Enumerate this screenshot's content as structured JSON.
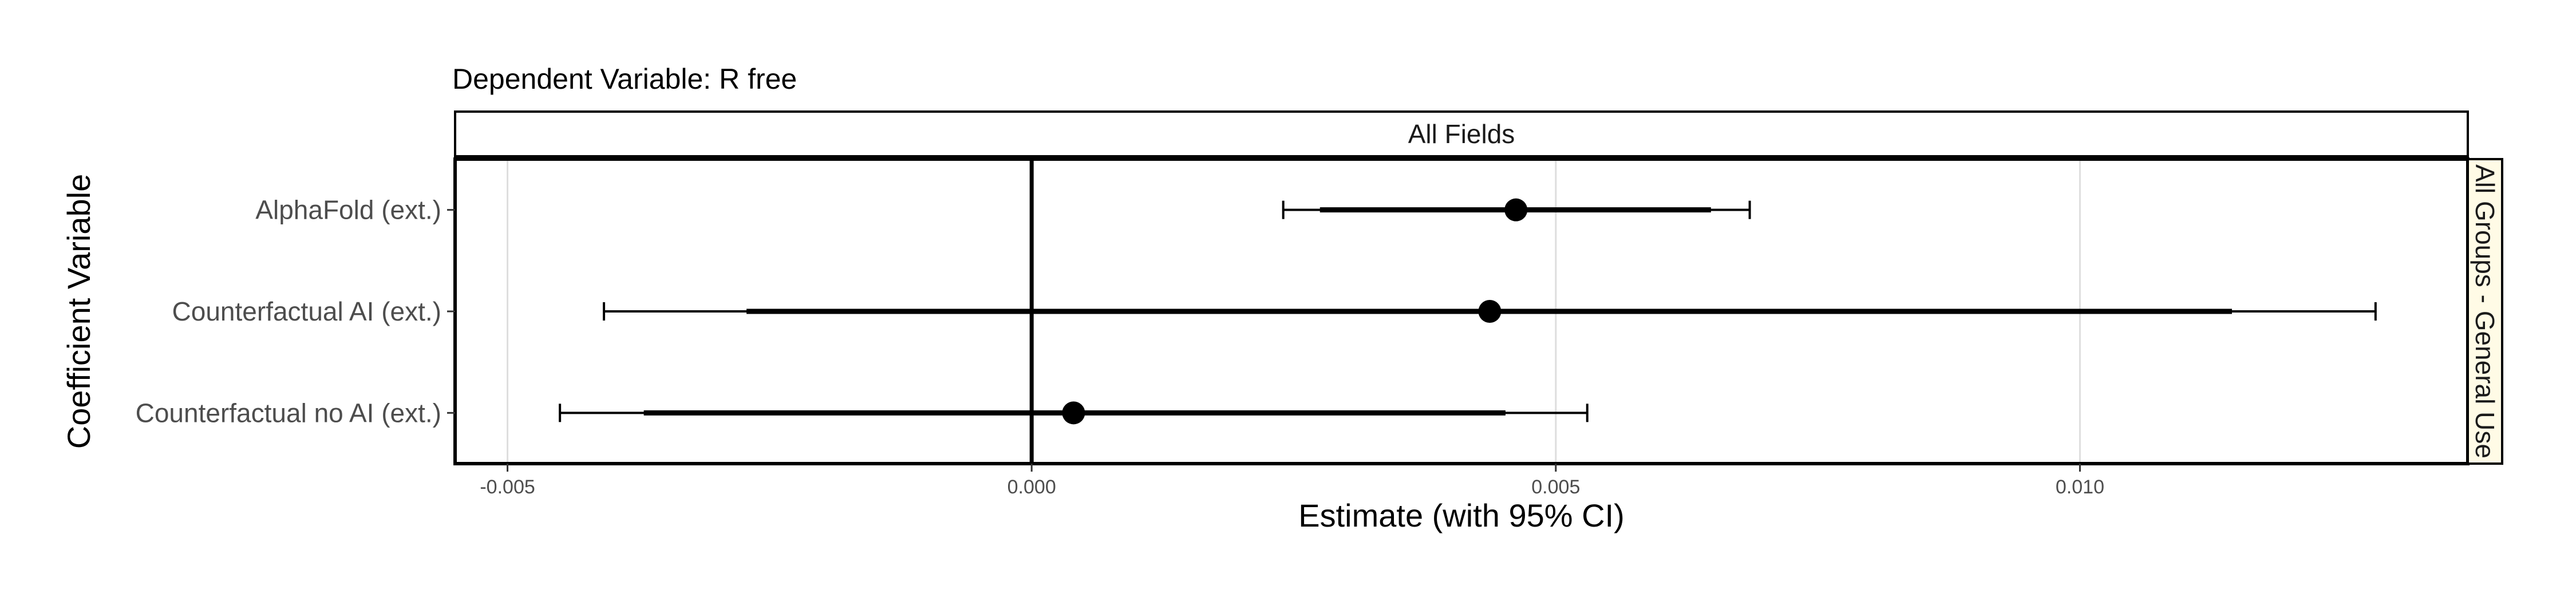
{
  "chart_data": {
    "type": "forest",
    "title": "Dependent Variable: R free",
    "facet_col": "All Fields",
    "facet_row": "All Groups - General Use",
    "xlabel": "Estimate (with 95% CI)",
    "ylabel": "Coefficient Variable",
    "xlim": [
      -0.0055,
      0.0137
    ],
    "x_ticks": [
      -0.005,
      0.0,
      0.005,
      0.01
    ],
    "x_tick_labels": [
      "-0.005",
      "0.000",
      "0.005",
      "0.010"
    ],
    "reference_line": 0,
    "grid": true,
    "series": [
      {
        "label": "AlphaFold (ext.)",
        "estimate": 0.00462,
        "ci90": [
          0.00275,
          0.00648
        ],
        "ci95": [
          0.0024,
          0.00685
        ]
      },
      {
        "label": "Counterfactual AI (ext.)",
        "estimate": 0.00437,
        "ci90": [
          -0.00272,
          0.01145
        ],
        "ci95": [
          -0.00408,
          0.01282
        ]
      },
      {
        "label": "Counterfactual no AI (ext.)",
        "estimate": 0.0004,
        "ci90": [
          -0.0037,
          0.00452
        ],
        "ci95": [
          -0.0045,
          0.0053
        ]
      }
    ],
    "colors": {
      "point": "#000000",
      "grid": "#dedede",
      "strip_fill": "#ffffff",
      "row_strip_fill": "#fffbe6"
    }
  }
}
